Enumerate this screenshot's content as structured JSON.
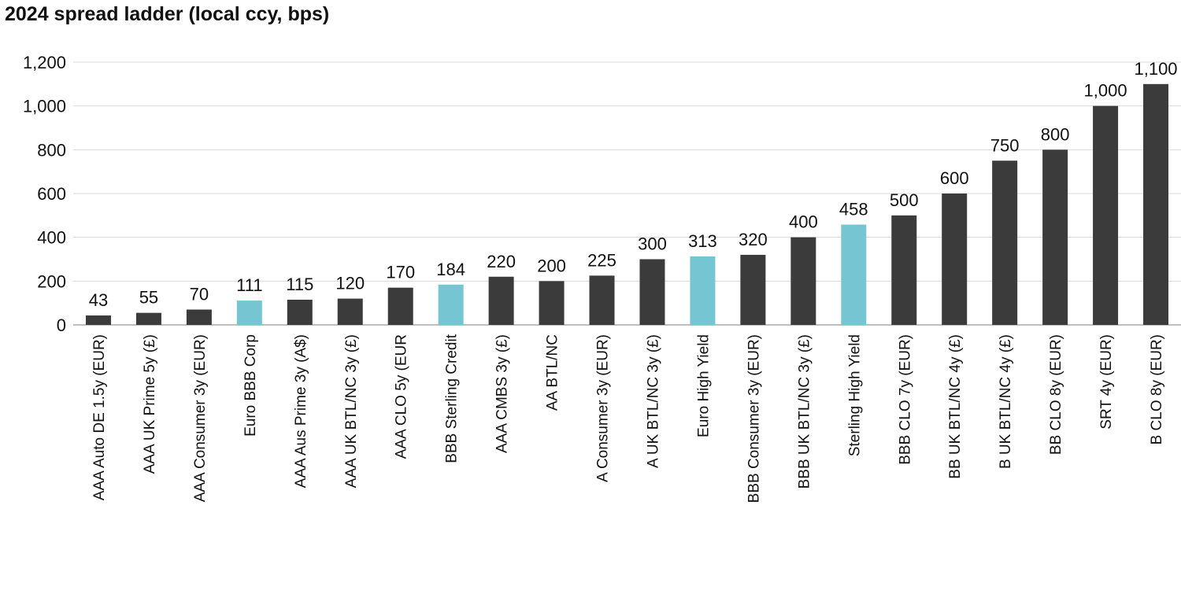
{
  "chart_data": {
    "type": "bar",
    "title": "2024 spread ladder (local ccy, bps)",
    "xlabel": "",
    "ylabel": "",
    "ylim": [
      0,
      1200
    ],
    "yticks": [
      0,
      200,
      400,
      600,
      800,
      1000,
      1200
    ],
    "ytick_labels": [
      "0",
      "200",
      "400",
      "600",
      "800",
      "1,000",
      "1,200"
    ],
    "grid": true,
    "categories": [
      "AAA Auto DE 1.5y (EUR)",
      "AAA UK Prime 5y (£)",
      "AAA Consumer 3y (EUR)",
      "Euro BBB Corp",
      "AAA Aus Prime 3y (A$)",
      "AAA UK BTL/NC 3y (£)",
      "AAA CLO 5y (EUR",
      "BBB Sterling Credit",
      "AAA CMBS 3y (£)",
      "AA BTL/NC",
      "A Consumer 3y (EUR)",
      "A UK BTL/NC 3y (£)",
      "Euro High Yield",
      "BBB Consumer 3y (EUR)",
      "BBB UK BTL/NC 3y (£)",
      "Sterling High Yield",
      "BBB CLO 7y (EUR)",
      "BB UK BTL/NC 4y (£)",
      "B UK BTL/NC 4y (£)",
      "BB CLO 8y (EUR)",
      "SRT 4y (EUR)",
      "B CLO 8y (EUR)"
    ],
    "values": [
      43,
      55,
      70,
      111,
      115,
      120,
      170,
      184,
      220,
      200,
      225,
      300,
      313,
      320,
      400,
      458,
      500,
      600,
      750,
      800,
      1000,
      1100
    ],
    "data_labels": [
      "43",
      "55",
      "70",
      "111",
      "115",
      "120",
      "170",
      "184",
      "220",
      "200",
      "225",
      "300",
      "313",
      "320",
      "400",
      "458",
      "500",
      "600",
      "750",
      "800",
      "1,000",
      "1,100"
    ],
    "highlighted": [
      false,
      false,
      false,
      true,
      false,
      false,
      false,
      true,
      false,
      false,
      false,
      false,
      true,
      false,
      false,
      true,
      false,
      false,
      false,
      false,
      false,
      false
    ],
    "colors": {
      "default": "#3a3b3a",
      "highlight": "#76c5d3",
      "grid": "#d9d9d9",
      "axis": "#7f7f7f"
    }
  }
}
